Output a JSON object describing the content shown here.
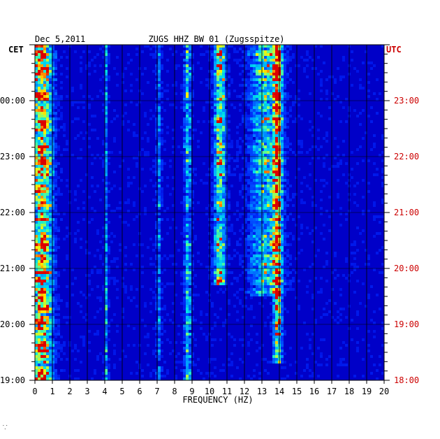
{
  "header": {
    "date": "Dec 5,2011",
    "station": "ZUGS HHZ BW 01 (Zugsspitze)"
  },
  "left_axis_zone": "CET",
  "right_axis_zone": "UTC",
  "footer_mark": "⸪",
  "colors": {
    "frame": "#000000",
    "left_labels": "#000000",
    "right_labels": "#cc0000",
    "background": "#0000cc"
  },
  "chart_data": {
    "type": "heatmap",
    "xlabel": "FREQUENCY (HZ)",
    "xlim": [
      0,
      20
    ],
    "x_ticks": [
      "0",
      "1",
      "2",
      "3",
      "4",
      "5",
      "6",
      "7",
      "8",
      "9",
      "10",
      "11",
      "12",
      "13",
      "14",
      "15",
      "16",
      "17",
      "18",
      "19",
      "20"
    ],
    "y_ticks_left": [
      "19:00",
      "20:00",
      "21:00",
      "22:00",
      "23:00",
      "00:00"
    ],
    "y_ticks_right": [
      "18:00",
      "19:00",
      "20:00",
      "21:00",
      "22:00",
      "23:00"
    ],
    "ylim_hours": [
      0,
      6
    ],
    "energy_bands": [
      {
        "center_hz": 0.4,
        "width_hz": 0.6,
        "strength": 1.0
      },
      {
        "center_hz": 4.1,
        "width_hz": 0.1,
        "strength": 0.45
      },
      {
        "center_hz": 7.1,
        "width_hz": 0.15,
        "strength": 0.35
      },
      {
        "center_hz": 8.75,
        "width_hz": 0.2,
        "strength": 0.55
      },
      {
        "center_hz": 10.6,
        "width_hz": 0.35,
        "strength": 0.8
      },
      {
        "center_hz": 13.2,
        "width_hz": 0.9,
        "strength": 0.6
      },
      {
        "center_hz": 13.9,
        "width_hz": 0.25,
        "strength": 0.85
      }
    ],
    "band_time_extent_hours": {
      "0.4": [
        0,
        6
      ],
      "10.6": [
        1.7,
        6
      ],
      "13.2": [
        1.5,
        6
      ],
      "13.9": [
        0.3,
        6
      ]
    }
  }
}
